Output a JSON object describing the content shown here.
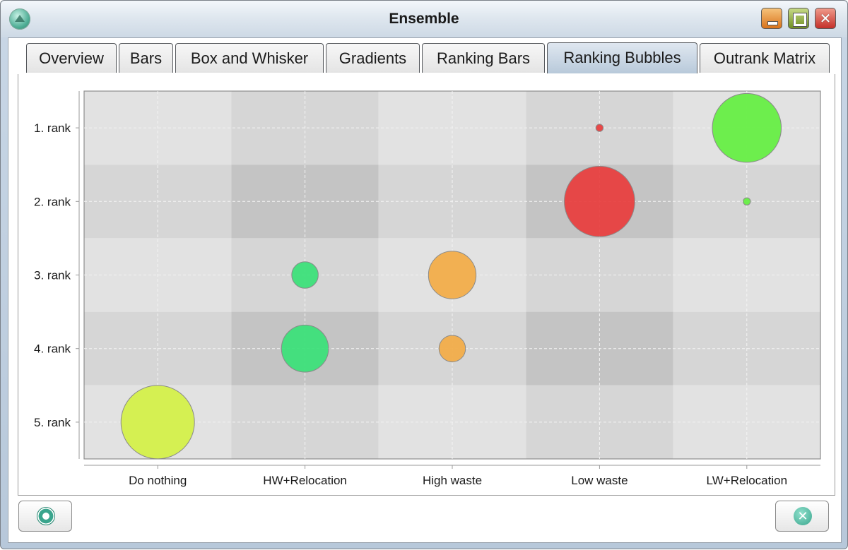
{
  "window": {
    "title": "Ensemble",
    "icon": "app-logo-icon",
    "controls": {
      "minimize": "minimize-icon",
      "maximize": "maximize-icon",
      "close": "close-icon"
    }
  },
  "tabs": [
    {
      "label": "Overview",
      "active": false
    },
    {
      "label": "Bars",
      "active": false
    },
    {
      "label": "Box and Whisker",
      "active": false
    },
    {
      "label": "Gradients",
      "active": false
    },
    {
      "label": "Ranking Bars",
      "active": false
    },
    {
      "label": "Ranking Bubbles",
      "active": true
    },
    {
      "label": "Outrank Matrix",
      "active": false
    }
  ],
  "colors": {
    "active_tab": "#c6d4e2",
    "cell_light": "#e2e2e2",
    "cell_mid": "#d6d6d6",
    "cell_dark": "#c4c4c4",
    "bubble_stroke": "#8a8a8a"
  },
  "chart_data": {
    "type": "scatter",
    "subtype": "bubble",
    "categories": [
      "Do nothing",
      "HW+Relocation",
      "High waste",
      "Low waste",
      "LW+Relocation"
    ],
    "ranks": [
      "1. rank",
      "2. rank",
      "3. rank",
      "4. rank",
      "5. rank"
    ],
    "category_colors": [
      "#d4f04a",
      "#3de07a",
      "#f2ad4a",
      "#e84040",
      "#66ee44"
    ],
    "bubbles": [
      {
        "category": "Low waste",
        "rank": "1. rank",
        "share": 0.01
      },
      {
        "category": "LW+Relocation",
        "rank": "1. rank",
        "share": 0.88
      },
      {
        "category": "Low waste",
        "rank": "2. rank",
        "share": 0.92
      },
      {
        "category": "LW+Relocation",
        "rank": "2. rank",
        "share": 0.01
      },
      {
        "category": "HW+Relocation",
        "rank": "3. rank",
        "share": 0.13
      },
      {
        "category": "High waste",
        "rank": "3. rank",
        "share": 0.42
      },
      {
        "category": "HW+Relocation",
        "rank": "4. rank",
        "share": 0.41
      },
      {
        "category": "High waste",
        "rank": "4. rank",
        "share": 0.13
      },
      {
        "category": "Do nothing",
        "rank": "5. rank",
        "share": 1.0
      }
    ],
    "grid": true
  },
  "buttons": {
    "help": "help-lifebuoy-icon",
    "close": "close-circle-icon"
  }
}
